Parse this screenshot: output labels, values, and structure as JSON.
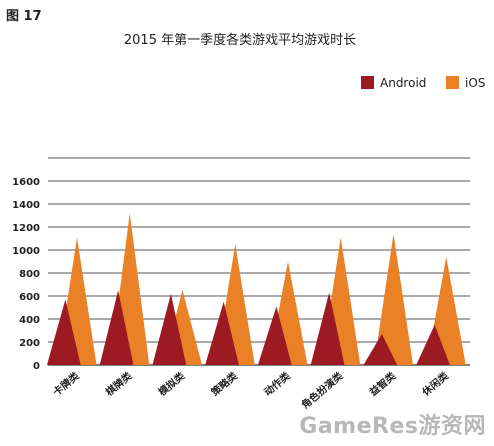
{
  "figure_label": "图 17",
  "colors": {
    "android": "#9c1b22",
    "ios": "#ea8127",
    "grid": "#555555"
  },
  "watermark": "GameRes游资网",
  "chart_data": {
    "type": "area",
    "title": "2015 年第一季度各类游戏平均游戏时长",
    "xlabel": "",
    "ylabel": "",
    "ylim": [
      0,
      1800
    ],
    "yticks": [
      0,
      200,
      400,
      600,
      800,
      1000,
      1200,
      1400,
      1600
    ],
    "grid": true,
    "legend_position": "top-right",
    "categories": [
      "卡牌类",
      "棋牌类",
      "模拟类",
      "策略类",
      "动作类",
      "角色扮演类",
      "益智类",
      "休闲类"
    ],
    "series": [
      {
        "name": "Android",
        "values": [
          570,
          650,
          620,
          550,
          510,
          630,
          270,
          350
        ]
      },
      {
        "name": "iOS",
        "values": [
          1110,
          1320,
          650,
          1050,
          900,
          1110,
          1140,
          940
        ]
      }
    ]
  }
}
